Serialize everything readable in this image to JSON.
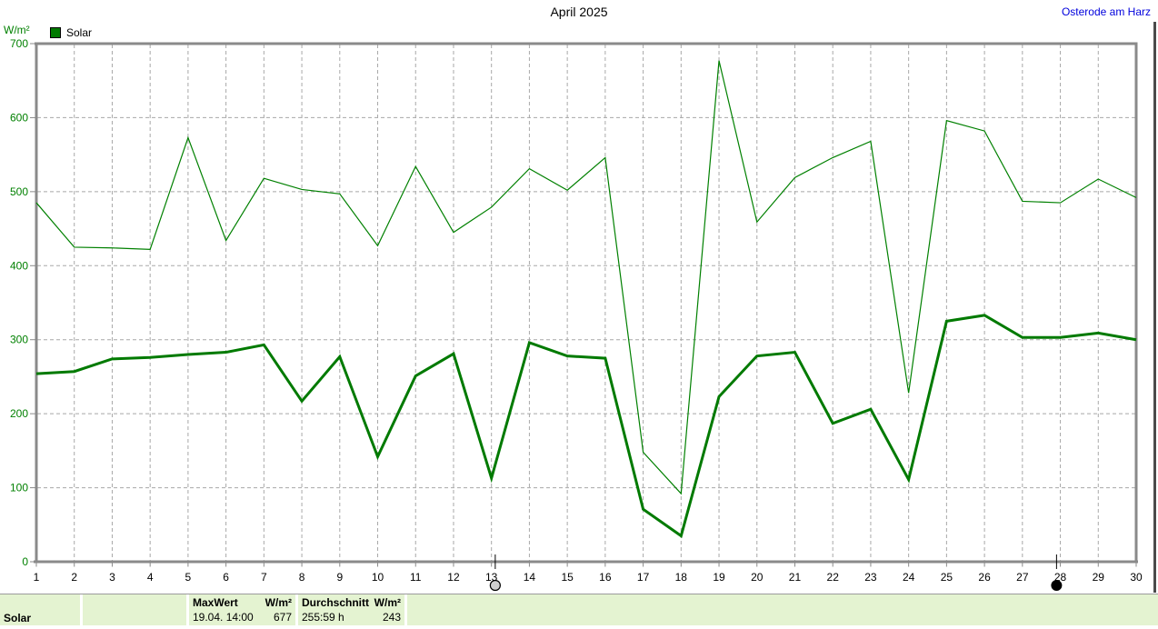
{
  "header": {
    "title": "April 2025",
    "station": "Osterode am Harz",
    "unit_label": "W/m²",
    "legend_label": "Solar"
  },
  "chart_data": {
    "type": "line",
    "title": "April 2025",
    "xlabel": "",
    "ylabel": "W/m²",
    "ylim": [
      0,
      700
    ],
    "yticks": [
      0,
      100,
      200,
      300,
      400,
      500,
      600,
      700
    ],
    "categories": [
      1,
      2,
      3,
      4,
      5,
      6,
      7,
      8,
      9,
      10,
      11,
      12,
      13,
      14,
      15,
      16,
      17,
      18,
      19,
      20,
      21,
      22,
      23,
      24,
      25,
      26,
      27,
      28,
      29,
      30
    ],
    "grid": true,
    "legend_position": "top-left",
    "legend": [
      {
        "label": "Solar",
        "color": "#007a00"
      }
    ],
    "series": [
      {
        "name": "Solar daily maximum (thin line)",
        "color": "#008000",
        "width": 1.2,
        "values": [
          485,
          425,
          424,
          422,
          573,
          434,
          518,
          503,
          497,
          427,
          534,
          445,
          479,
          531,
          502,
          546,
          148,
          92,
          677,
          459,
          519,
          546,
          568,
          228,
          596,
          582,
          487,
          485,
          517,
          492
        ]
      },
      {
        "name": "Solar daily average (thick line)",
        "color": "#007a00",
        "width": 3,
        "values": [
          254,
          257,
          274,
          276,
          280,
          283,
          293,
          217,
          277,
          142,
          251,
          281,
          113,
          296,
          278,
          275,
          71,
          35,
          223,
          278,
          283,
          187,
          206,
          111,
          325,
          333,
          303,
          303,
          309,
          300
        ]
      }
    ],
    "moon_markers": [
      {
        "day": 13.1,
        "phase": "full-moon"
      },
      {
        "day": 27.9,
        "phase": "new-moon"
      }
    ]
  },
  "status_bar": {
    "series_label": "Solar",
    "empty_cell": "",
    "max": {
      "label": "MaxWert",
      "unit": "W/m²",
      "datetime": "19.04. 14:00",
      "value": "677"
    },
    "average": {
      "label": "Durchschnitt",
      "unit": "W/m²",
      "duration": "255:59 h",
      "value": "243"
    }
  },
  "colors": {
    "line_thin": "#008000",
    "line_thick": "#007a00",
    "axis_border": "#8a8a8a",
    "gridline": "#a8a8a8",
    "y_label_green": "#008000",
    "x_label_black": "#000000",
    "station_blue": "#0000dd",
    "statusbar_bg": "#e4f3d1"
  }
}
